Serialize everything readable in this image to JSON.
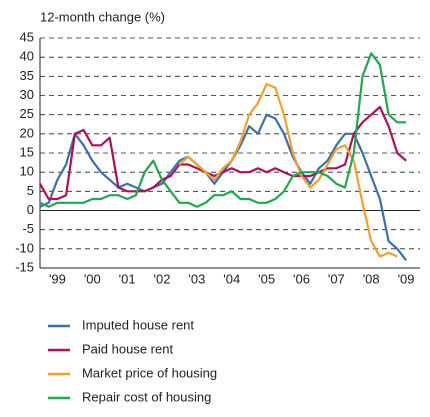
{
  "chart_data": {
    "type": "line",
    "y_label": "12-month change (%)",
    "x": [
      1999.0,
      1999.25,
      1999.5,
      1999.75,
      2000.0,
      2000.25,
      2000.5,
      2000.75,
      2001.0,
      2001.25,
      2001.5,
      2001.75,
      2002.0,
      2002.25,
      2002.5,
      2002.75,
      2003.0,
      2003.25,
      2003.5,
      2003.75,
      2004.0,
      2004.25,
      2004.5,
      2004.75,
      2005.0,
      2005.25,
      2005.5,
      2005.75,
      2006.0,
      2006.25,
      2006.5,
      2006.75,
      2007.0,
      2007.25,
      2007.5,
      2007.75,
      2008.0,
      2008.25,
      2008.5,
      2008.75,
      2009.0,
      2009.25,
      2009.5
    ],
    "xlim": [
      1999,
      2009.9
    ],
    "xticks": [
      {
        "value": 1999.5,
        "label": "'99"
      },
      {
        "value": 2000.5,
        "label": "'00"
      },
      {
        "value": 2001.5,
        "label": "'01"
      },
      {
        "value": 2002.5,
        "label": "'02"
      },
      {
        "value": 2003.5,
        "label": "'03"
      },
      {
        "value": 2004.5,
        "label": "'04"
      },
      {
        "value": 2005.5,
        "label": "'05"
      },
      {
        "value": 2006.5,
        "label": "'06"
      },
      {
        "value": 2007.5,
        "label": "'07"
      },
      {
        "value": 2008.5,
        "label": "'08"
      },
      {
        "value": 2009.5,
        "label": "'09"
      }
    ],
    "ylim": [
      -15,
      45
    ],
    "yticks": [
      -15,
      -10,
      -5,
      0,
      5,
      10,
      15,
      20,
      25,
      30,
      35,
      40,
      45
    ],
    "grid": true,
    "series": [
      {
        "name": "Imputed house rent",
        "color": "#3a6fb0",
        "values": [
          1,
          2,
          8,
          12,
          20,
          17,
          13,
          10,
          8,
          6,
          7,
          6,
          5,
          6,
          7,
          10,
          13,
          14,
          12,
          10,
          7,
          10,
          13,
          17,
          22,
          20,
          25,
          24,
          20,
          14,
          10,
          7,
          11,
          13,
          17,
          20,
          20,
          15,
          9,
          3,
          -8,
          -10,
          -13
        ]
      },
      {
        "name": "Paid house rent",
        "color": "#b0105a",
        "values": [
          7,
          3,
          3,
          4,
          20,
          21,
          17,
          17,
          19,
          6,
          5,
          5,
          5,
          6,
          8,
          9,
          12,
          12,
          11,
          10,
          9,
          10,
          11,
          10,
          10,
          11,
          10,
          11,
          10,
          9,
          9,
          9,
          10,
          11,
          11,
          12,
          20,
          23,
          25,
          27,
          22,
          15,
          13
        ]
      },
      {
        "name": "Market price of housing",
        "color": "#f5a02a",
        "values": [
          null,
          null,
          null,
          null,
          null,
          null,
          null,
          null,
          null,
          null,
          null,
          null,
          null,
          null,
          null,
          null,
          12,
          14,
          12,
          10,
          8,
          11,
          13,
          18,
          25,
          28,
          33,
          32,
          25,
          15,
          9,
          6,
          8,
          12,
          16,
          17,
          13,
          2,
          -8,
          -12,
          -11,
          -12,
          null
        ]
      },
      {
        "name": "Repair cost of housing",
        "color": "#1fa84f",
        "values": [
          2,
          1,
          2,
          2,
          2,
          2,
          3,
          3,
          4,
          4,
          3,
          4,
          10,
          13,
          8,
          5,
          2,
          2,
          1,
          2,
          4,
          4,
          5,
          3,
          3,
          2,
          2,
          3,
          5,
          9,
          10,
          10,
          10,
          9,
          7,
          6,
          15,
          35,
          41,
          38,
          25,
          23,
          23
        ]
      }
    ]
  }
}
